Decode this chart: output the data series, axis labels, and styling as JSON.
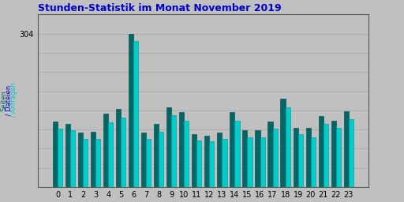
{
  "title": "Stunden-Statistik im Monat November 2019",
  "title_color": "#0000CC",
  "ylabel": "Seiten / Dateien / Anfragen",
  "background_color": "#C0C0C0",
  "plot_bg_color": "#C0C0C0",
  "ylim": [
    0,
    342
  ],
  "ytick_val": 304,
  "xlabel_labels": [
    "0",
    "1",
    "2",
    "3",
    "4",
    "5",
    "6",
    "7",
    "8",
    "9",
    "10",
    "11",
    "12",
    "13",
    "14",
    "15",
    "16",
    "17",
    "18",
    "19",
    "20",
    "21",
    "22",
    "23"
  ],
  "seiten": [
    130,
    125,
    108,
    110,
    145,
    155,
    304,
    108,
    125,
    158,
    148,
    105,
    102,
    108,
    148,
    112,
    112,
    130,
    175,
    118,
    118,
    140,
    132,
    150
  ],
  "anfragen": [
    115,
    112,
    95,
    96,
    128,
    138,
    290,
    95,
    110,
    142,
    132,
    92,
    90,
    95,
    132,
    98,
    98,
    115,
    158,
    104,
    98,
    125,
    118,
    135
  ],
  "color_seiten": "#006666",
  "color_anfragen": "#00CCCC",
  "edge_seiten": "#004444",
  "edge_anfragen": "#009999",
  "grid_color": "#AAAAAA",
  "border_color": "#555555",
  "bar_width": 0.38,
  "title_fontsize": 9,
  "tick_fontsize": 7,
  "ylabel_fontsize": 6
}
